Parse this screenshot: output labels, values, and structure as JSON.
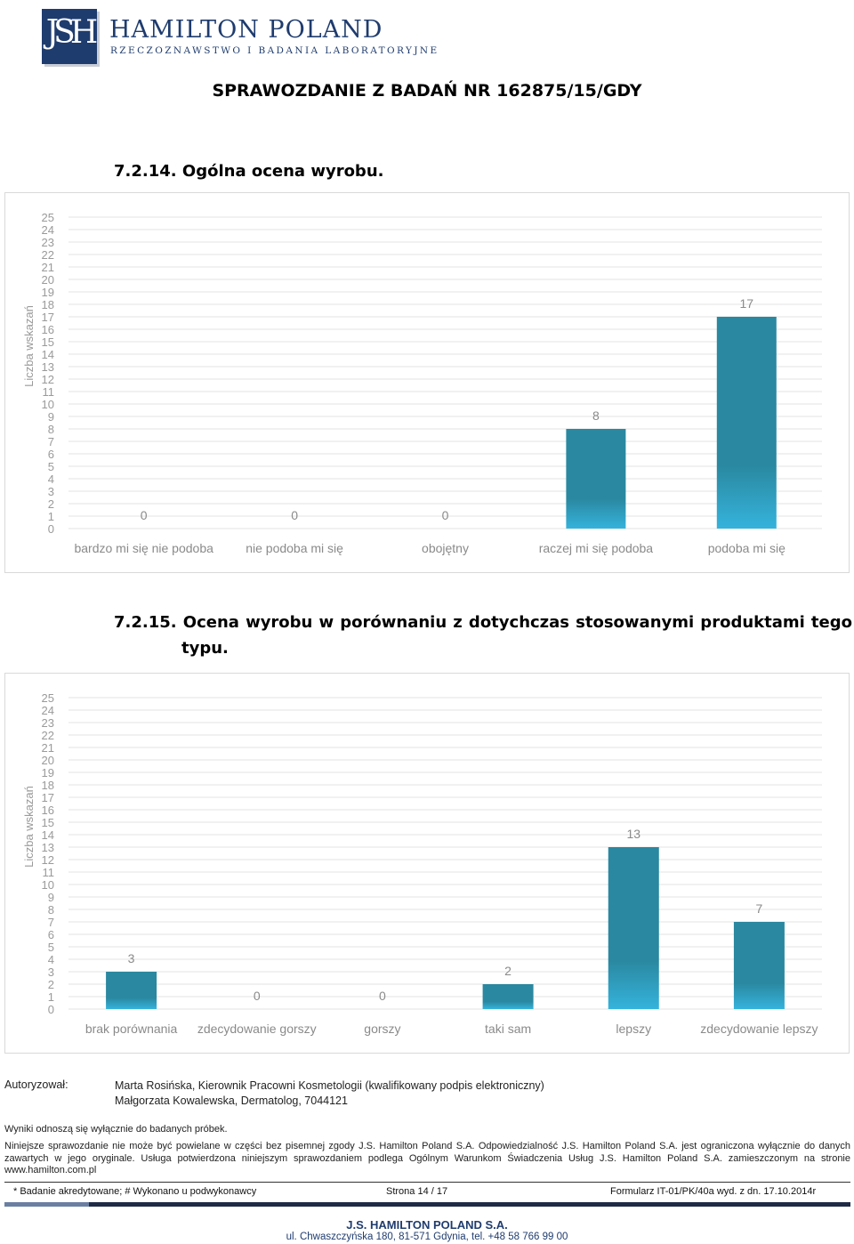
{
  "header": {
    "logo_monogram": "JSH",
    "logo_name": "HAMILTON POLAND",
    "logo_tagline": "RZECZOZNAWSTWO I BADANIA LABORATORYJNE",
    "brand_color": "#1f3c6e"
  },
  "report_title": "SPRAWOZDANIE Z BADAŃ NR 162875/15/GDY",
  "section1": {
    "number": "7.2.14.",
    "title": "Ogólna ocena wyrobu."
  },
  "section2": {
    "number": "7.2.15.",
    "title_line1": "Ocena wyrobu w porównaniu z dotychczas stosowanymi produktami tego",
    "title_line2": "typu."
  },
  "chart_data": [
    {
      "type": "bar",
      "ylabel": "Liczba wskazań",
      "ylim": [
        0,
        25
      ],
      "yticks": [
        "0",
        "1",
        "2",
        "3",
        "4",
        "5",
        "6",
        "7",
        "8",
        "9",
        "10",
        "11",
        "12",
        "13",
        "14",
        "15",
        "16",
        "17",
        "18",
        "19",
        "20",
        "21",
        "22",
        "23",
        "24",
        "25"
      ],
      "categories": [
        "bardzo mi się nie podoba",
        "nie podoba mi się",
        "obojętny",
        "raczej mi się podoba",
        "podoba mi się"
      ],
      "values": [
        0,
        0,
        0,
        8,
        17
      ],
      "data_labels": [
        "0",
        "0",
        "0",
        "8",
        "17"
      ],
      "grid": true,
      "bar_color": "#2a88a0",
      "bar_gradient_color": "#35b3dc"
    },
    {
      "type": "bar",
      "ylabel": "Liczba wskazań",
      "ylim": [
        0,
        25
      ],
      "yticks": [
        "0",
        "1",
        "2",
        "3",
        "4",
        "5",
        "6",
        "7",
        "8",
        "9",
        "10",
        "11",
        "12",
        "13",
        "14",
        "15",
        "16",
        "17",
        "18",
        "19",
        "20",
        "21",
        "22",
        "23",
        "24",
        "25"
      ],
      "categories": [
        "brak porównania",
        "zdecydowanie gorszy",
        "gorszy",
        "taki sam",
        "lepszy",
        "zdecydowanie lepszy"
      ],
      "values": [
        3,
        0,
        0,
        2,
        13,
        7
      ],
      "data_labels": [
        "3",
        "0",
        "0",
        "2",
        "13",
        "7"
      ],
      "grid": true,
      "bar_color": "#2a88a0",
      "bar_gradient_color": "#35b3dc"
    }
  ],
  "authorization": {
    "label": "Autoryzował:",
    "line1": "Marta Rosińska, Kierownik Pracowni Kosmetologii (kwalifikowany podpis elektroniczny)",
    "line2": "Małgorzata Kowalewska, Dermatolog, 7044121"
  },
  "results_note": "Wyniki odnoszą się wyłącznie do badanych próbek.",
  "legal_text": "Niniejsze sprawozdanie nie może być powielane w części bez pisemnej zgody J.S. Hamilton Poland S.A. Odpowiedzialność J.S. Hamilton Poland S.A. jest ograniczona wyłącznie do danych zawartych w jego oryginale. Usługa potwierdzona niniejszym sprawozdaniem podlega Ogólnym Warunkom Świadczenia Usług J.S. Hamilton Poland S.A. zamieszczonym na stronie www.hamilton.com.pl",
  "footer": {
    "accreditation_note": "* Badanie akredytowane; # Wykonano u podwykonawcy",
    "page_label": "Strona 14 / 17",
    "form_label": "Formularz IT-01/PK/40a wyd. z dn. 17.10.2014r",
    "company": "J.S. HAMILTON POLAND S.A.",
    "address": "ul. Chwaszczyńska 180, 81-571 Gdynia, tel. +48 58 766 99 00"
  }
}
